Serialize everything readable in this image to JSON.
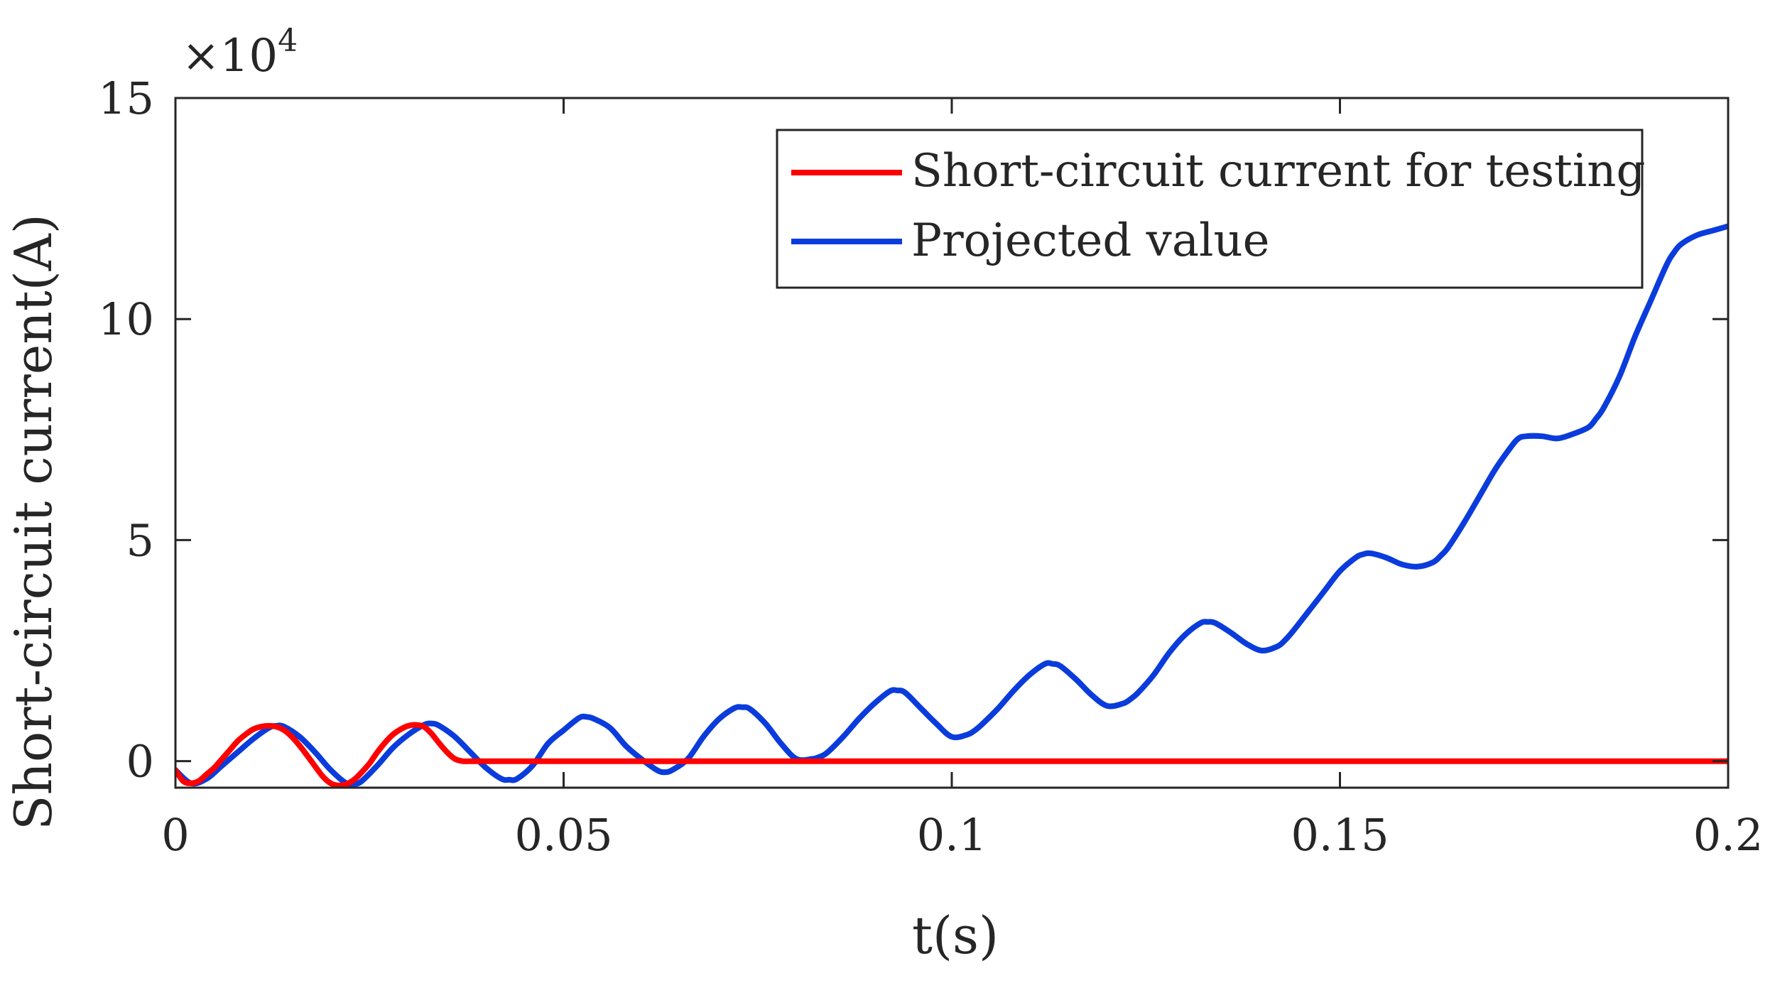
{
  "chart_data": {
    "type": "line",
    "xlabel": "t(s)",
    "ylabel": "Short-circuit current(A)",
    "y_multiplier_label": "×10",
    "y_multiplier_exponent": "4",
    "xlim": [
      0,
      0.2
    ],
    "ylim": [
      -0.6,
      15
    ],
    "xticks": [
      0,
      0.05,
      0.1,
      0.15,
      0.2
    ],
    "xtick_labels": [
      "0",
      "0.05",
      "0.1",
      "0.15",
      "0.2"
    ],
    "yticks": [
      0,
      5,
      10,
      15
    ],
    "ytick_labels": [
      "0",
      "5",
      "10",
      "15"
    ],
    "grid": false,
    "legend_position": "top-right",
    "series": [
      {
        "name": "Short-circuit current for testing",
        "color": "#ff0000",
        "x": [
          0,
          0.001,
          0.002,
          0.003,
          0.004,
          0.005,
          0.006,
          0.007,
          0.008,
          0.009,
          0.01,
          0.011,
          0.012,
          0.013,
          0.014,
          0.015,
          0.016,
          0.017,
          0.018,
          0.019,
          0.02,
          0.021,
          0.022,
          0.023,
          0.024,
          0.025,
          0.026,
          0.027,
          0.028,
          0.029,
          0.03,
          0.031,
          0.032,
          0.033,
          0.034,
          0.035,
          0.036,
          0.037,
          0.038,
          0.039,
          0.04,
          0.06,
          0.08,
          0.1,
          0.12,
          0.14,
          0.16,
          0.18,
          0.2
        ],
        "y": [
          -0.2,
          -0.45,
          -0.5,
          -0.45,
          -0.3,
          -0.15,
          0.05,
          0.25,
          0.45,
          0.6,
          0.72,
          0.78,
          0.8,
          0.78,
          0.7,
          0.55,
          0.35,
          0.12,
          -0.12,
          -0.35,
          -0.5,
          -0.55,
          -0.52,
          -0.42,
          -0.25,
          -0.05,
          0.2,
          0.42,
          0.6,
          0.72,
          0.8,
          0.82,
          0.78,
          0.62,
          0.4,
          0.2,
          0.05,
          0,
          0,
          0,
          0,
          0,
          0,
          0,
          0,
          0,
          0,
          0,
          0
        ]
      },
      {
        "name": "Projected value",
        "color": "#0a3cdc",
        "x": [
          0,
          0.002,
          0.004,
          0.006,
          0.008,
          0.01,
          0.012,
          0.013,
          0.014,
          0.016,
          0.018,
          0.02,
          0.022,
          0.023,
          0.024,
          0.026,
          0.028,
          0.03,
          0.032,
          0.033,
          0.034,
          0.036,
          0.038,
          0.04,
          0.042,
          0.043,
          0.044,
          0.046,
          0.048,
          0.05,
          0.052,
          0.053,
          0.054,
          0.056,
          0.058,
          0.06,
          0.062,
          0.063,
          0.064,
          0.066,
          0.068,
          0.07,
          0.072,
          0.073,
          0.074,
          0.076,
          0.078,
          0.08,
          0.082,
          0.083,
          0.084,
          0.086,
          0.088,
          0.09,
          0.092,
          0.093,
          0.094,
          0.096,
          0.098,
          0.1,
          0.102,
          0.103,
          0.104,
          0.106,
          0.108,
          0.11,
          0.112,
          0.113,
          0.114,
          0.116,
          0.118,
          0.12,
          0.122,
          0.123,
          0.124,
          0.126,
          0.128,
          0.13,
          0.132,
          0.133,
          0.134,
          0.136,
          0.138,
          0.14,
          0.142,
          0.143,
          0.144,
          0.146,
          0.148,
          0.15,
          0.152,
          0.153,
          0.154,
          0.156,
          0.158,
          0.16,
          0.162,
          0.163,
          0.164,
          0.166,
          0.168,
          0.17,
          0.172,
          0.173,
          0.174,
          0.176,
          0.178,
          0.18,
          0.182,
          0.183,
          0.184,
          0.186,
          0.188,
          0.19,
          0.192,
          0.193,
          0.194,
          0.196,
          0.198,
          0.2
        ],
        "y": [
          -0.2,
          -0.5,
          -0.4,
          -0.1,
          0.2,
          0.5,
          0.75,
          0.8,
          0.78,
          0.55,
          0.2,
          -0.2,
          -0.5,
          -0.52,
          -0.45,
          -0.1,
          0.3,
          0.6,
          0.82,
          0.85,
          0.8,
          0.55,
          0.2,
          -0.15,
          -0.4,
          -0.42,
          -0.4,
          -0.1,
          0.4,
          0.7,
          0.98,
          1.0,
          0.95,
          0.75,
          0.35,
          0.05,
          -0.2,
          -0.25,
          -0.2,
          0.05,
          0.55,
          0.95,
          1.2,
          1.22,
          1.18,
          0.85,
          0.4,
          0.05,
          0.05,
          0.1,
          0.2,
          0.55,
          0.95,
          1.3,
          1.58,
          1.6,
          1.55,
          1.2,
          0.85,
          0.55,
          0.6,
          0.7,
          0.85,
          1.2,
          1.6,
          1.95,
          2.2,
          2.2,
          2.15,
          1.85,
          1.5,
          1.25,
          1.3,
          1.4,
          1.55,
          1.95,
          2.45,
          2.85,
          3.12,
          3.15,
          3.12,
          2.9,
          2.65,
          2.5,
          2.6,
          2.75,
          2.95,
          3.4,
          3.85,
          4.3,
          4.6,
          4.68,
          4.7,
          4.6,
          4.45,
          4.4,
          4.5,
          4.65,
          4.85,
          5.4,
          6.0,
          6.6,
          7.1,
          7.3,
          7.35,
          7.35,
          7.3,
          7.4,
          7.55,
          7.75,
          8.0,
          8.7,
          9.6,
          10.4,
          11.2,
          11.5,
          11.7,
          11.9,
          12.0,
          12.1
        ]
      }
    ]
  }
}
